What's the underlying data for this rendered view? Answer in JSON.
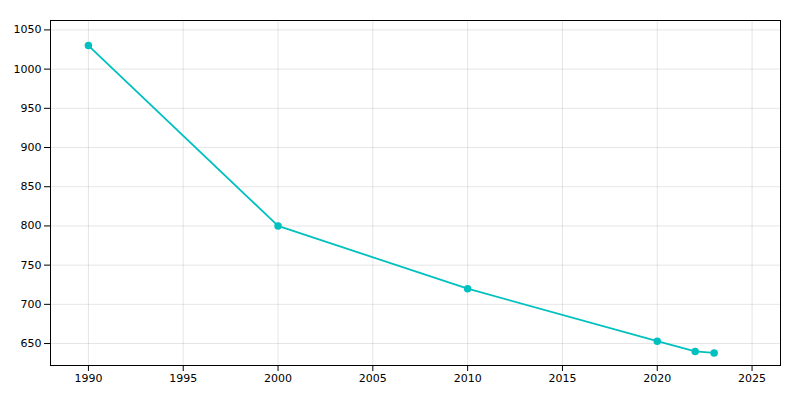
{
  "chart_data": {
    "type": "line",
    "x": [
      1990,
      2000,
      2010,
      2020,
      2022,
      2023
    ],
    "values": [
      1030,
      800,
      720,
      653,
      640,
      638
    ],
    "color": "#00C0C0",
    "marker": "circle",
    "xlim": [
      1988,
      2026.5
    ],
    "ylim": [
      622,
      1062
    ],
    "xticks": [
      1990,
      1995,
      2000,
      2005,
      2010,
      2015,
      2020,
      2025
    ],
    "yticks": [
      650,
      700,
      750,
      800,
      850,
      900,
      950,
      1000,
      1050
    ],
    "grid": true
  }
}
